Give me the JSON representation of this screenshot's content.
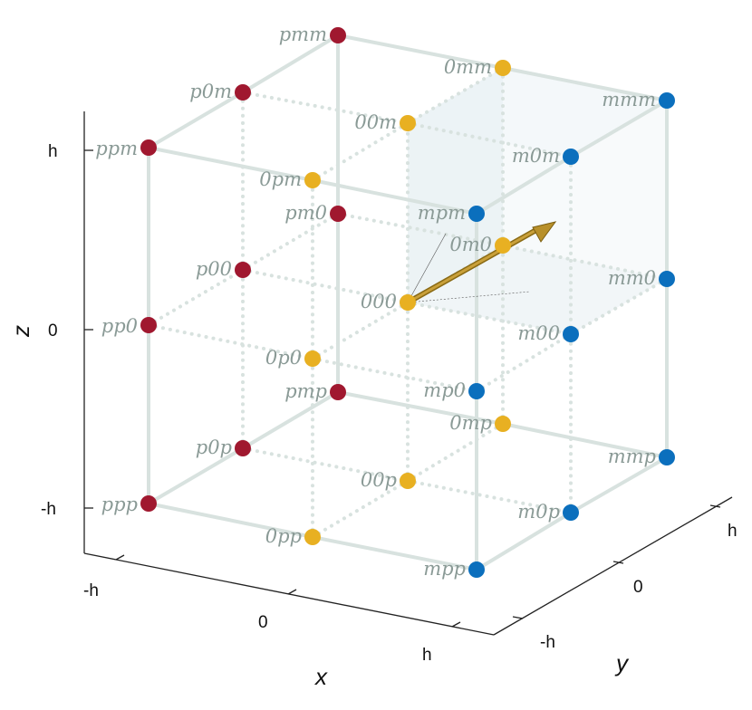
{
  "axes": {
    "x": {
      "title": "x",
      "ticks": [
        "-h",
        "0",
        "h"
      ]
    },
    "y": {
      "title": "y",
      "ticks": [
        "-h",
        "0",
        "h"
      ]
    },
    "z": {
      "title": "z",
      "ticks": [
        "h",
        "0",
        "-h"
      ]
    }
  },
  "colors": {
    "red": "#a0182f",
    "yellow": "#e8b022",
    "blue": "#0b6fbd",
    "edge": "#d8e2df",
    "arrow": "#b8902a"
  },
  "nodes": [
    {
      "label": "pmm",
      "color": "red"
    },
    {
      "label": "p0m",
      "color": "red"
    },
    {
      "label": "ppm",
      "color": "red"
    },
    {
      "label": "pm0",
      "color": "red"
    },
    {
      "label": "p00",
      "color": "red"
    },
    {
      "label": "pp0",
      "color": "red"
    },
    {
      "label": "pmp",
      "color": "red"
    },
    {
      "label": "p0p",
      "color": "red"
    },
    {
      "label": "ppp",
      "color": "red"
    },
    {
      "label": "0mm",
      "color": "yellow"
    },
    {
      "label": "00m",
      "color": "yellow"
    },
    {
      "label": "0pm",
      "color": "yellow"
    },
    {
      "label": "0m0",
      "color": "yellow"
    },
    {
      "label": "000",
      "color": "yellow"
    },
    {
      "label": "0p0",
      "color": "yellow"
    },
    {
      "label": "0mp",
      "color": "yellow"
    },
    {
      "label": "00p",
      "color": "yellow"
    },
    {
      "label": "0pp",
      "color": "yellow"
    },
    {
      "label": "mmm",
      "color": "blue"
    },
    {
      "label": "m0m",
      "color": "blue"
    },
    {
      "label": "mpm",
      "color": "blue"
    },
    {
      "label": "mm0",
      "color": "blue"
    },
    {
      "label": "m00",
      "color": "blue"
    },
    {
      "label": "mp0",
      "color": "blue"
    },
    {
      "label": "mmp",
      "color": "blue"
    },
    {
      "label": "m0p",
      "color": "blue"
    },
    {
      "label": "mpp",
      "color": "blue"
    }
  ]
}
